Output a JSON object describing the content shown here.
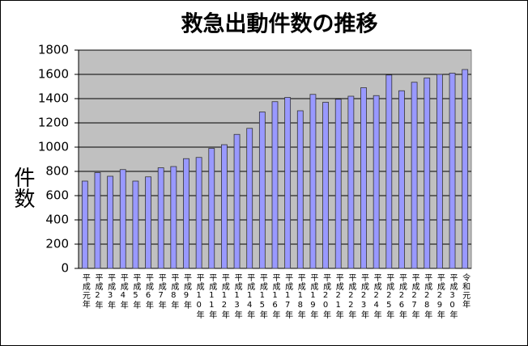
{
  "chart_data": {
    "type": "bar",
    "title": "救急出動件数の推移",
    "y_label": "件数",
    "categories": [
      "平成元年",
      "平成2年",
      "平成3年",
      "平成4年",
      "平成5年",
      "平成6年",
      "平成7年",
      "平成8年",
      "平成9年",
      "平成10年",
      "平成11年",
      "平成12年",
      "平成13年",
      "平成14年",
      "平成15年",
      "平成16年",
      "平成17年",
      "平成18年",
      "平成19年",
      "平成20年",
      "平成21年",
      "平成22年",
      "平成23年",
      "平成24年",
      "平成25年",
      "平成26年",
      "平成27年",
      "平成28年",
      "平成29年",
      "平成30年",
      "令和元年"
    ],
    "values": [
      720,
      790,
      760,
      815,
      720,
      755,
      830,
      840,
      905,
      915,
      990,
      1020,
      1105,
      1155,
      1290,
      1375,
      1410,
      1300,
      1435,
      1370,
      1395,
      1420,
      1490,
      1425,
      1595,
      1465,
      1535,
      1570,
      1600,
      1610,
      1640
    ],
    "color": "#9999ff",
    "ylim": [
      0,
      1800
    ],
    "yticks": [
      0,
      200,
      400,
      600,
      800,
      1000,
      1200,
      1400,
      1600,
      1800
    ],
    "grid": true
  }
}
